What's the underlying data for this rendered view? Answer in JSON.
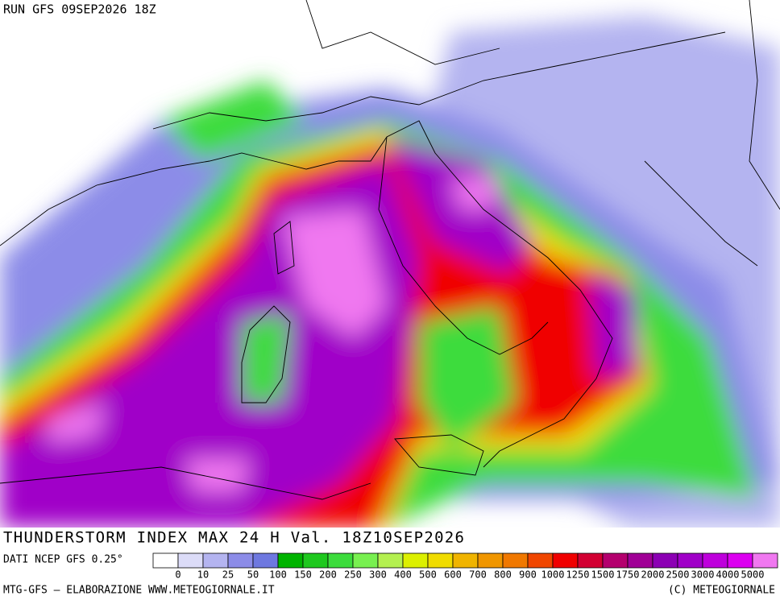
{
  "header": {
    "run": "RUN GFS 09SEP2026 18Z"
  },
  "footer": {
    "title": "THUNDERSTORM INDEX MAX 24 H Val. 18Z10SEP2026",
    "source": "DATI NCEP GFS 0.25°",
    "credit": "MTG-GFS — ELABORAZIONE WWW.METEOGIORNALE.IT",
    "copyright": "(C) METEOGIORNALE"
  },
  "legend": {
    "labels": [
      "0",
      "10",
      "25",
      "50",
      "100",
      "150",
      "200",
      "250",
      "300",
      "400",
      "500",
      "600",
      "700",
      "800",
      "900",
      "1000",
      "1250",
      "1500",
      "1750",
      "2000",
      "2500",
      "3000",
      "4000",
      "5000"
    ],
    "colors": [
      "#ffffff",
      "#dcdcf8",
      "#b4b4f0",
      "#8c8ce8",
      "#6e78e0",
      "#00b400",
      "#1ec81e",
      "#3cdc3c",
      "#78f050",
      "#b4f050",
      "#dcf000",
      "#f0dc00",
      "#f0b400",
      "#f09600",
      "#f07800",
      "#f04600",
      "#f00000",
      "#d20032",
      "#b4006e",
      "#a00096",
      "#8c00b4",
      "#a000c8",
      "#be00dc",
      "#dc00f0",
      "#f078f0"
    ]
  }
}
